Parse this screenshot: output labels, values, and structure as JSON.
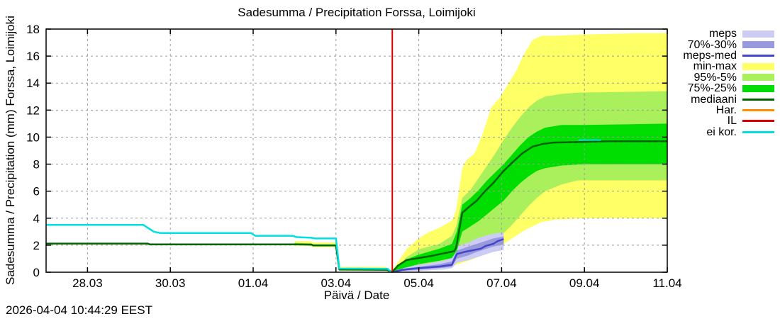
{
  "title": "Sadesumma / Precipitation  Forssa, Loimijoki",
  "axis": {
    "y_label": "Sadesumma / Precipitation (mm)  Forssa, Loimijoki",
    "x_label": "Päivä / Date"
  },
  "timestamp": "2026-04-04 10:44:29 EEST",
  "legend": [
    {
      "label": "meps",
      "type": "band",
      "color": "#ccccf4"
    },
    {
      "label": "70%-30%",
      "type": "band",
      "color": "#9999dd"
    },
    {
      "label": "meps-med",
      "type": "line",
      "color": "#4444cc"
    },
    {
      "label": "min-max",
      "type": "band",
      "color": "#ffff66"
    },
    {
      "label": "95%-5%",
      "type": "band",
      "color": "#aaf05c"
    },
    {
      "label": "75%-25%",
      "type": "band",
      "color": "#00dd00"
    },
    {
      "label": "mediaani",
      "type": "line",
      "color": "#006400"
    },
    {
      "label": "Har.",
      "type": "line",
      "color": "#ff8c00"
    },
    {
      "label": "IL",
      "type": "line",
      "color": "#dd0000"
    },
    {
      "label": "ei kor.",
      "type": "line",
      "color": "#00e0e0"
    }
  ],
  "chart_data": {
    "type": "line",
    "subtype": "ensemble-precipitation-fan-forecast",
    "title": "Sadesumma / Precipitation  Forssa, Loimijoki",
    "xlabel": "Päivä / Date",
    "ylabel": "Sadesumma / Precipitation (mm)",
    "grid": true,
    "legend_position": "outside-right-top",
    "x_unit": "days since 27.03",
    "xlim": [
      0,
      15
    ],
    "ylim": [
      0,
      18
    ],
    "x_ticks": [
      {
        "x": 1,
        "label": "28.03"
      },
      {
        "x": 3,
        "label": "30.03"
      },
      {
        "x": 5,
        "label": "01.04"
      },
      {
        "x": 7,
        "label": "03.04"
      },
      {
        "x": 9,
        "label": "05.04"
      },
      {
        "x": 11,
        "label": "07.04"
      },
      {
        "x": 13,
        "label": "09.04"
      },
      {
        "x": 15,
        "label": "11.04"
      }
    ],
    "y_ticks": [
      {
        "y": 0,
        "label": "0"
      },
      {
        "y": 2,
        "label": "2"
      },
      {
        "y": 4,
        "label": "4"
      },
      {
        "y": 6,
        "label": "6"
      },
      {
        "y": 8,
        "label": "8"
      },
      {
        "y": 10,
        "label": "10"
      },
      {
        "y": 12,
        "label": "12"
      },
      {
        "y": 14,
        "label": "14"
      },
      {
        "y": 16,
        "label": "16"
      },
      {
        "y": 18,
        "label": "18"
      }
    ],
    "now_line": {
      "name": "IL",
      "x": 8.36,
      "color": "#dd0000"
    },
    "bands": [
      {
        "name": "min-max",
        "color": "#ffff66",
        "points": [
          [
            6.0,
            1.95,
            2.3
          ],
          [
            6.4,
            1.95,
            2.3
          ],
          [
            6.45,
            1.85,
            2.2
          ],
          [
            7.0,
            1.85,
            2.2
          ],
          [
            7.1,
            0.1,
            0.4
          ],
          [
            8.2,
            0.1,
            0.4
          ],
          [
            8.3,
            0.0,
            0.1
          ],
          [
            8.45,
            0.0,
            0.5
          ],
          [
            8.55,
            0.05,
            1.0
          ],
          [
            8.7,
            0.1,
            1.7
          ],
          [
            9.0,
            0.2,
            2.5
          ],
          [
            9.2,
            0.25,
            2.9
          ],
          [
            9.5,
            0.3,
            3.3
          ],
          [
            9.8,
            0.4,
            3.8
          ],
          [
            9.9,
            0.55,
            4.6
          ],
          [
            10.05,
            0.7,
            7.7
          ],
          [
            10.15,
            0.8,
            8.3
          ],
          [
            10.35,
            1.0,
            8.8
          ],
          [
            10.55,
            1.3,
            10.3
          ],
          [
            10.75,
            1.6,
            12.2
          ],
          [
            10.95,
            1.9,
            12.9
          ],
          [
            11.15,
            2.3,
            13.9
          ],
          [
            11.35,
            2.7,
            14.9
          ],
          [
            11.55,
            3.1,
            16.2
          ],
          [
            11.75,
            3.4,
            17.2
          ],
          [
            11.95,
            3.7,
            17.5
          ],
          [
            12.3,
            3.9,
            17.5
          ],
          [
            13.0,
            4.0,
            17.6
          ],
          [
            14.3,
            4.0,
            17.7
          ],
          [
            15,
            4.0,
            17.7
          ]
        ]
      },
      {
        "name": "95%-5%",
        "color": "#aaf05c",
        "points": [
          [
            6.0,
            2.0,
            2.2
          ],
          [
            6.45,
            1.92,
            2.1
          ],
          [
            7.0,
            1.92,
            2.1
          ],
          [
            7.1,
            0.14,
            0.32
          ],
          [
            8.2,
            0.14,
            0.32
          ],
          [
            8.3,
            0.0,
            0.06
          ],
          [
            8.45,
            0.05,
            0.35
          ],
          [
            8.6,
            0.1,
            0.65
          ],
          [
            8.7,
            0.15,
            1.1
          ],
          [
            9.0,
            0.3,
            1.7
          ],
          [
            9.5,
            0.4,
            2.1
          ],
          [
            9.8,
            0.5,
            2.7
          ],
          [
            9.9,
            0.7,
            3.4
          ],
          [
            10.05,
            0.9,
            5.5
          ],
          [
            10.25,
            1.2,
            6.1
          ],
          [
            10.45,
            1.5,
            7.0
          ],
          [
            10.65,
            1.9,
            7.9
          ],
          [
            10.85,
            2.4,
            8.8
          ],
          [
            11.05,
            2.9,
            9.8
          ],
          [
            11.25,
            3.5,
            10.7
          ],
          [
            11.45,
            4.2,
            11.5
          ],
          [
            11.65,
            4.9,
            12.2
          ],
          [
            11.85,
            5.5,
            12.7
          ],
          [
            12.05,
            6.0,
            13.0
          ],
          [
            12.45,
            6.5,
            13.2
          ],
          [
            12.85,
            6.8,
            13.3
          ],
          [
            15,
            6.8,
            13.4
          ]
        ]
      },
      {
        "name": "meps",
        "color": "#ccccf4",
        "points": [
          [
            8.4,
            0.0,
            0.06
          ],
          [
            8.6,
            0.05,
            0.35
          ],
          [
            9.0,
            0.1,
            0.55
          ],
          [
            9.3,
            0.15,
            0.7
          ],
          [
            9.6,
            0.2,
            0.85
          ],
          [
            9.8,
            0.3,
            1.1
          ],
          [
            9.92,
            0.7,
            1.9
          ],
          [
            10.2,
            0.9,
            2.2
          ],
          [
            10.4,
            1.1,
            2.5
          ],
          [
            10.6,
            1.3,
            2.7
          ],
          [
            10.8,
            1.5,
            2.85
          ],
          [
            11.05,
            1.65,
            2.95
          ]
        ]
      },
      {
        "name": "70%-30%",
        "color": "#9999dd",
        "points": [
          [
            8.4,
            0.0,
            0.03
          ],
          [
            8.6,
            0.1,
            0.25
          ],
          [
            9.0,
            0.2,
            0.4
          ],
          [
            9.5,
            0.3,
            0.6
          ],
          [
            9.8,
            0.4,
            0.8
          ],
          [
            9.92,
            1.0,
            1.6
          ],
          [
            10.2,
            1.25,
            1.9
          ],
          [
            10.4,
            1.5,
            2.1
          ],
          [
            10.6,
            1.7,
            2.3
          ],
          [
            10.8,
            1.9,
            2.5
          ],
          [
            11.05,
            2.05,
            2.65
          ]
        ]
      },
      {
        "name": "75%-25%",
        "color": "#00dd00",
        "points": [
          [
            8.36,
            0.0,
            0.02
          ],
          [
            8.5,
            0.2,
            0.55
          ],
          [
            8.7,
            0.35,
            0.95
          ],
          [
            9.0,
            0.6,
            1.3
          ],
          [
            9.5,
            0.85,
            1.75
          ],
          [
            9.8,
            1.05,
            2.1
          ],
          [
            9.92,
            1.6,
            3.0
          ],
          [
            10.05,
            3.0,
            5.0
          ],
          [
            10.25,
            3.4,
            5.5
          ],
          [
            10.45,
            3.8,
            6.1
          ],
          [
            10.65,
            4.3,
            6.8
          ],
          [
            10.85,
            4.8,
            7.4
          ],
          [
            11.05,
            5.3,
            8.0
          ],
          [
            11.25,
            6.0,
            8.7
          ],
          [
            11.45,
            6.6,
            9.4
          ],
          [
            11.65,
            7.1,
            10.0
          ],
          [
            11.85,
            7.5,
            10.4
          ],
          [
            12.05,
            7.7,
            10.7
          ],
          [
            12.45,
            7.9,
            10.9
          ],
          [
            13.0,
            8.0,
            10.9
          ],
          [
            15,
            8.0,
            11.0
          ]
        ]
      }
    ],
    "lines": [
      {
        "name": "meps-med",
        "color": "#4444cc",
        "width": 2.5,
        "points": [
          [
            8.4,
            0.03
          ],
          [
            8.6,
            0.18
          ],
          [
            9.0,
            0.3
          ],
          [
            9.5,
            0.42
          ],
          [
            9.8,
            0.55
          ],
          [
            9.92,
            1.35
          ],
          [
            10.1,
            1.5
          ],
          [
            10.3,
            1.62
          ],
          [
            10.5,
            1.75
          ],
          [
            10.62,
            1.95
          ],
          [
            10.8,
            2.1
          ],
          [
            10.9,
            2.3
          ],
          [
            11.05,
            2.45
          ]
        ]
      },
      {
        "name": "mediaani",
        "color": "#006400",
        "width": 2.5,
        "points": [
          [
            0,
            2.12
          ],
          [
            2.45,
            2.12
          ],
          [
            2.5,
            2.06
          ],
          [
            5.95,
            2.06
          ],
          [
            6.4,
            2.05
          ],
          [
            6.45,
            1.98
          ],
          [
            7.0,
            1.98
          ],
          [
            7.08,
            0.2
          ],
          [
            8.25,
            0.18
          ],
          [
            8.3,
            0.05
          ],
          [
            8.36,
            0.02
          ],
          [
            8.5,
            0.5
          ],
          [
            8.7,
            0.9
          ],
          [
            9.0,
            1.05
          ],
          [
            9.3,
            1.2
          ],
          [
            9.6,
            1.4
          ],
          [
            9.85,
            1.55
          ],
          [
            9.9,
            1.8
          ],
          [
            10.05,
            4.4
          ],
          [
            10.2,
            4.8
          ],
          [
            10.4,
            5.3
          ],
          [
            10.6,
            6.0
          ],
          [
            10.8,
            6.6
          ],
          [
            11.05,
            7.5
          ],
          [
            11.25,
            8.1
          ],
          [
            11.5,
            8.8
          ],
          [
            11.75,
            9.3
          ],
          [
            12.0,
            9.5
          ],
          [
            12.25,
            9.6
          ],
          [
            13.0,
            9.65
          ],
          [
            13.6,
            9.7
          ],
          [
            15,
            9.7
          ]
        ]
      },
      {
        "name": "ei kor.",
        "color": "#00e0e0",
        "width": 2.5,
        "points": [
          [
            0,
            3.5
          ],
          [
            2.35,
            3.5
          ],
          [
            2.45,
            3.3
          ],
          [
            2.6,
            3.0
          ],
          [
            2.75,
            2.9
          ],
          [
            4.95,
            2.9
          ],
          [
            5.05,
            2.7
          ],
          [
            5.95,
            2.7
          ],
          [
            6.05,
            2.6
          ],
          [
            6.4,
            2.55
          ],
          [
            6.5,
            2.5
          ],
          [
            7.0,
            2.5
          ],
          [
            7.08,
            0.27
          ],
          [
            8.25,
            0.25
          ],
          [
            8.3,
            0.1
          ],
          [
            8.36,
            0.03
          ]
        ]
      },
      {
        "name": "ei kor. forecast",
        "color": "#00e0e0",
        "width": 2,
        "points": [
          [
            12.85,
            9.78
          ],
          [
            13.4,
            9.78
          ]
        ]
      }
    ]
  }
}
